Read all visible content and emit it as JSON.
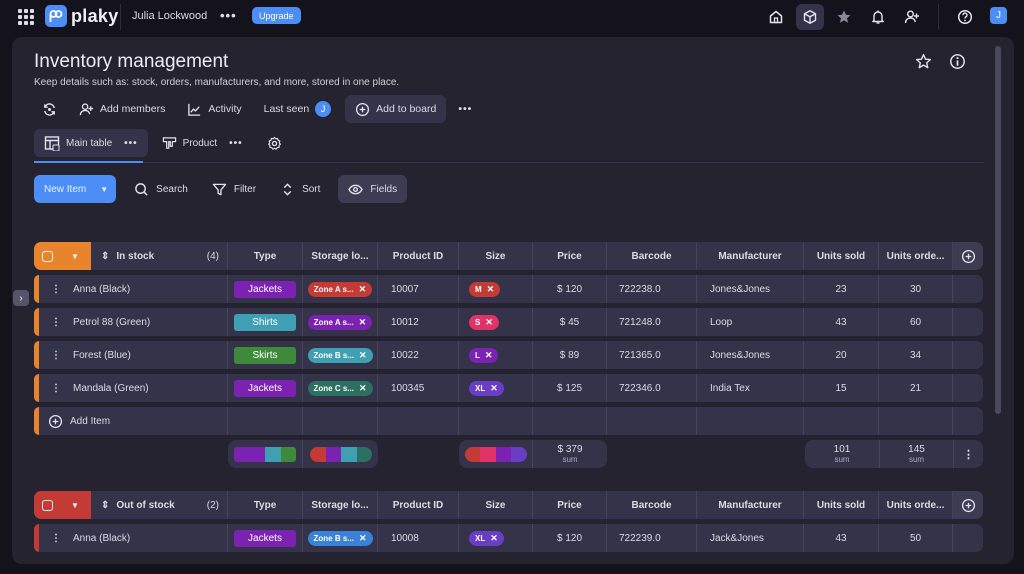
{
  "topbar": {
    "brand": "plaky",
    "workspace": "Julia Lockwood",
    "more": "•••",
    "upgrade": "Upgrade",
    "icons": [
      "home-icon",
      "box-icon",
      "star-icon",
      "bell-icon",
      "add-user-icon",
      "help-icon"
    ],
    "user_initial": "J"
  },
  "board": {
    "title": "Inventory management",
    "description": "Keep details such as: stock, orders, manufacturers, and more, stored in one place.",
    "actions": {
      "add_members": "Add members",
      "activity": "Activity",
      "last_seen": "Last seen",
      "last_seen_initial": "J",
      "add_to_board": "Add to board",
      "more": "•••"
    },
    "views": [
      {
        "label": "Main table",
        "active": true
      },
      {
        "label": "Product",
        "active": false
      }
    ],
    "view_more": "•••"
  },
  "toolbar": {
    "new_item": "New Item",
    "search": "Search",
    "filter": "Filter",
    "sort": "Sort",
    "fields": "Fields"
  },
  "columns": [
    "Type",
    "Storage lo...",
    "Product ID",
    "Size",
    "Price",
    "Barcode",
    "Manufacturer",
    "Units sold",
    "Units orde..."
  ],
  "groups": [
    {
      "name": "In stock",
      "count": "(4)",
      "color": "#e8842c",
      "rows": [
        {
          "name": "Anna (Black)",
          "type": "Jackets",
          "type_color": "#7b22b3",
          "storage": "Zone A s...",
          "storage_color": "#c43a34",
          "pid": "10007",
          "size": "M",
          "size_color": "#c43a34",
          "price": "$ 120",
          "barcode": "722238.0",
          "manufacturer": "Jones&Jones",
          "sold": "23",
          "ordered": "30"
        },
        {
          "name": "Petrol 88 (Green)",
          "type": "Shirts",
          "type_color": "#3fa0b3",
          "storage": "Zone A s...",
          "storage_color": "#7b22b3",
          "pid": "10012",
          "size": "S",
          "size_color": "#e0336a",
          "price": "$ 45",
          "barcode": "721248.0",
          "manufacturer": "Loop",
          "sold": "43",
          "ordered": "60"
        },
        {
          "name": "Forest (Blue)",
          "type": "Skirts",
          "type_color": "#3f8a3a",
          "storage": "Zone B s...",
          "storage_color": "#3fa0b3",
          "pid": "10022",
          "size": "L",
          "size_color": "#7b22b3",
          "price": "$ 89",
          "barcode": "721365.0",
          "manufacturer": "Jones&Jones",
          "sold": "20",
          "ordered": "34"
        },
        {
          "name": "Mandala (Green)",
          "type": "Jackets",
          "type_color": "#7b22b3",
          "storage": "Zone C s...",
          "storage_color": "#2b7060",
          "pid": "100345",
          "size": "XL",
          "size_color": "#6a3ec4",
          "price": "$ 125",
          "barcode": "722346.0",
          "manufacturer": "India Tex",
          "sold": "15",
          "ordered": "21"
        }
      ],
      "add_item": "Add Item",
      "summary": {
        "price_sum": "$ 379",
        "sold_sum": "101",
        "ordered_sum": "145",
        "sum_label": "sum"
      }
    },
    {
      "name": "Out of stock",
      "count": "(2)",
      "color": "#c43a34",
      "rows": [
        {
          "name": "Anna (Black)",
          "type": "Jackets",
          "type_color": "#7b22b3",
          "storage": "Zone B s...",
          "storage_color": "#3a82d8",
          "pid": "10008",
          "size": "XL",
          "size_color": "#6a3ec4",
          "price": "$ 120",
          "barcode": "722239.0",
          "manufacturer": "Jack&Jones",
          "sold": "43",
          "ordered": "50"
        }
      ]
    }
  ]
}
